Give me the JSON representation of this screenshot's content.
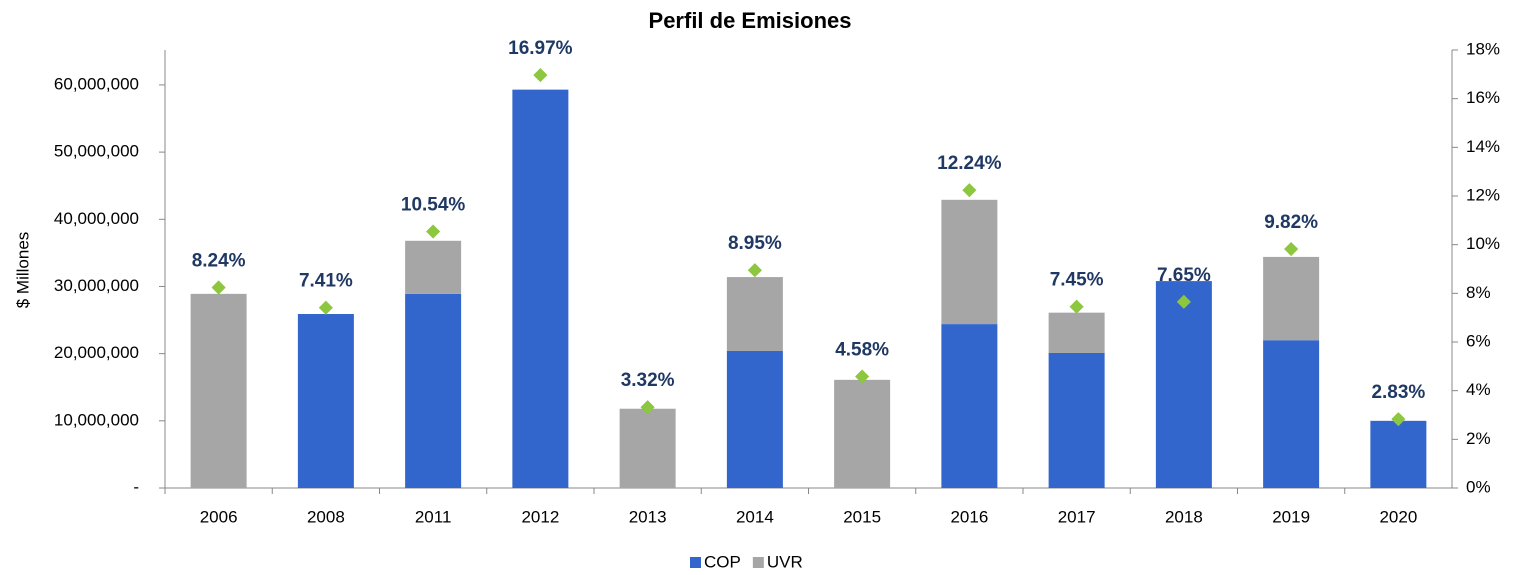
{
  "chart_data": {
    "type": "bar",
    "title": "Perfil de Emisiones",
    "ylabel": "$ Millones",
    "stacked": true,
    "categories": [
      "2006",
      "2008",
      "2011",
      "2012",
      "2013",
      "2014",
      "2015",
      "2016",
      "2017",
      "2018",
      "2019",
      "2020"
    ],
    "series": [
      {
        "name": "COP",
        "color": "#3366cc",
        "values": [
          0,
          25900000,
          28900000,
          59300000,
          0,
          20400000,
          0,
          24400000,
          20100000,
          30800000,
          22000000,
          10000000
        ]
      },
      {
        "name": "UVR",
        "color": "#a6a6a6",
        "values": [
          28900000,
          0,
          7900000,
          0,
          11800000,
          11000000,
          16100000,
          18500000,
          6000000,
          0,
          12400000,
          0
        ]
      },
      {
        "type": "scatter",
        "axis": "y2",
        "color": "#8dc63f",
        "values": [
          8.24,
          7.41,
          10.54,
          16.97,
          3.32,
          8.95,
          4.58,
          12.24,
          7.45,
          7.65,
          9.82,
          2.83
        ],
        "value_labels": [
          "8.24%",
          "7.41%",
          "10.54%",
          "16.97%",
          "3.32%",
          "8.95%",
          "4.58%",
          "12.24%",
          "7.45%",
          "7.65%",
          "9.82%",
          "2.83%"
        ]
      }
    ],
    "ylim": [
      0,
      65200000
    ],
    "yticks": [
      {
        "value": 0,
        "label": "-"
      },
      {
        "value": 10000000,
        "label": "10,000,000"
      },
      {
        "value": 20000000,
        "label": "20,000,000"
      },
      {
        "value": 30000000,
        "label": "30,000,000"
      },
      {
        "value": 40000000,
        "label": "40,000,000"
      },
      {
        "value": 50000000,
        "label": "50,000,000"
      },
      {
        "value": 60000000,
        "label": "60,000,000"
      }
    ],
    "y2lim": [
      0,
      18
    ],
    "y2ticks": [
      {
        "value": 0,
        "label": "0%"
      },
      {
        "value": 2,
        "label": "2%"
      },
      {
        "value": 4,
        "label": "4%"
      },
      {
        "value": 6,
        "label": "6%"
      },
      {
        "value": 8,
        "label": "8%"
      },
      {
        "value": 10,
        "label": "10%"
      },
      {
        "value": 12,
        "label": "12%"
      },
      {
        "value": 14,
        "label": "14%"
      },
      {
        "value": 16,
        "label": "16%"
      },
      {
        "value": 18,
        "label": "18%"
      }
    ],
    "legend": "bottom"
  }
}
